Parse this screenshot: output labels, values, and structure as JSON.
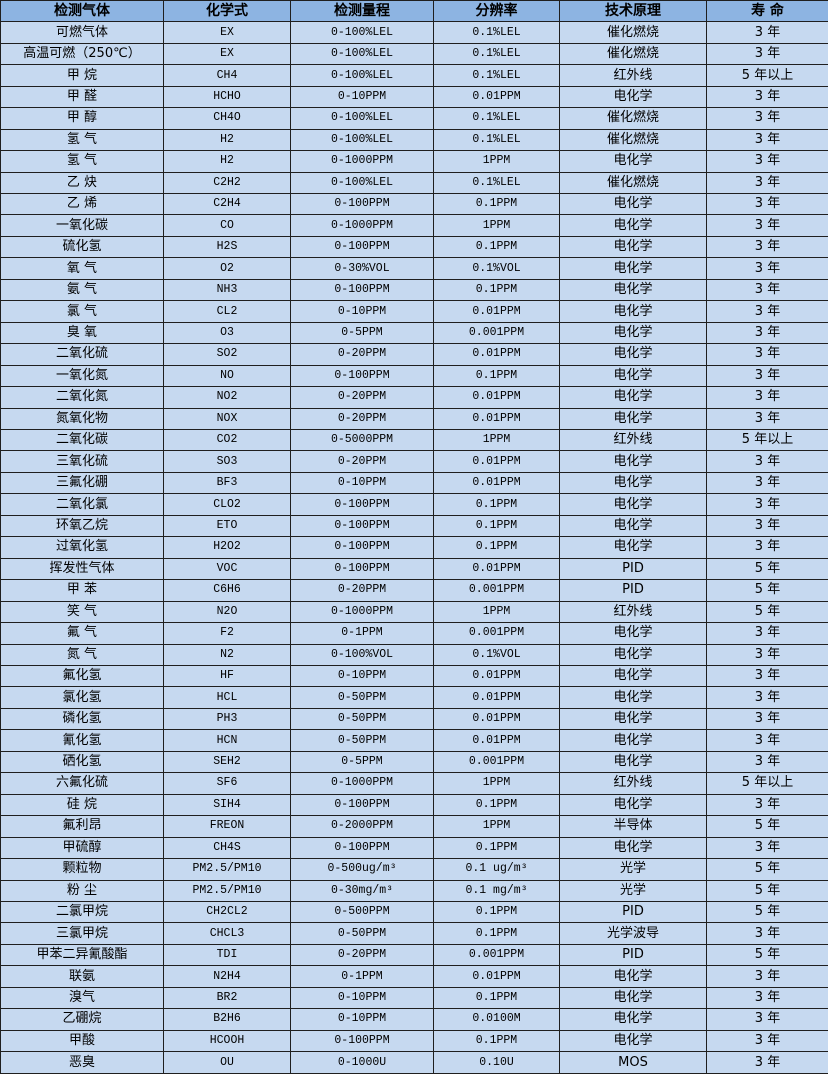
{
  "headers": [
    "检测气体",
    "化学式",
    "检测量程",
    "分辨率",
    "技术原理",
    "寿 命"
  ],
  "rows": [
    [
      "可燃气体",
      "EX",
      "0-100%LEL",
      "0.1%LEL",
      "催化燃烧",
      "3 年"
    ],
    [
      "高温可燃（250℃）",
      "EX",
      "0-100%LEL",
      "0.1%LEL",
      "催化燃烧",
      "3 年"
    ],
    [
      "甲 烷",
      "CH4",
      "0-100%LEL",
      "0.1%LEL",
      "红外线",
      "5 年以上"
    ],
    [
      "甲 醛",
      "HCHO",
      "0-10PPM",
      "0.01PPM",
      "电化学",
      "3 年"
    ],
    [
      "甲 醇",
      "CH4O",
      "0-100%LEL",
      "0.1%LEL",
      "催化燃烧",
      "3 年"
    ],
    [
      "氢 气",
      "H2",
      "0-100%LEL",
      "0.1%LEL",
      "催化燃烧",
      "3 年"
    ],
    [
      "氢 气",
      "H2",
      "0-1000PPM",
      "1PPM",
      "电化学",
      "3 年"
    ],
    [
      "乙 炔",
      "C2H2",
      "0-100%LEL",
      "0.1%LEL",
      "催化燃烧",
      "3 年"
    ],
    [
      "乙 烯",
      "C2H4",
      "0-100PPM",
      "0.1PPM",
      "电化学",
      "3 年"
    ],
    [
      "一氧化碳",
      "CO",
      "0-1000PPM",
      "1PPM",
      "电化学",
      "3 年"
    ],
    [
      "硫化氢",
      "H2S",
      "0-100PPM",
      "0.1PPM",
      "电化学",
      "3 年"
    ],
    [
      "氧 气",
      "O2",
      "0-30%VOL",
      "0.1%VOL",
      "电化学",
      "3 年"
    ],
    [
      "氨 气",
      "NH3",
      "0-100PPM",
      "0.1PPM",
      "电化学",
      "3 年"
    ],
    [
      "氯 气",
      "CL2",
      "0-10PPM",
      "0.01PPM",
      "电化学",
      "3 年"
    ],
    [
      "臭 氧",
      "O3",
      "0-5PPM",
      "0.001PPM",
      "电化学",
      "3 年"
    ],
    [
      "二氧化硫",
      "SO2",
      "0-20PPM",
      "0.01PPM",
      "电化学",
      "3 年"
    ],
    [
      "一氧化氮",
      "NO",
      "0-100PPM",
      "0.1PPM",
      "电化学",
      "3 年"
    ],
    [
      "二氧化氮",
      "NO2",
      "0-20PPM",
      "0.01PPM",
      "电化学",
      "3 年"
    ],
    [
      "氮氧化物",
      "NOX",
      "0-20PPM",
      "0.01PPM",
      "电化学",
      "3 年"
    ],
    [
      "二氧化碳",
      "CO2",
      "0-5000PPM",
      "1PPM",
      "红外线",
      "5 年以上"
    ],
    [
      "三氧化硫",
      "SO3",
      "0-20PPM",
      "0.01PPM",
      "电化学",
      "3 年"
    ],
    [
      "三氟化硼",
      "BF3",
      "0-10PPM",
      "0.01PPM",
      "电化学",
      "3 年"
    ],
    [
      "二氧化氯",
      "CLO2",
      "0-100PPM",
      "0.1PPM",
      "电化学",
      "3 年"
    ],
    [
      "环氧乙烷",
      "ETO",
      "0-100PPM",
      "0.1PPM",
      "电化学",
      "3 年"
    ],
    [
      "过氧化氢",
      "H2O2",
      "0-100PPM",
      "0.1PPM",
      "电化学",
      "3 年"
    ],
    [
      "挥发性气体",
      "VOC",
      "0-100PPM",
      "0.01PPM",
      "PID",
      "5 年"
    ],
    [
      "甲 苯",
      "C6H6",
      "0-20PPM",
      "0.001PPM",
      "PID",
      "5 年"
    ],
    [
      "笑 气",
      "N2O",
      "0-1000PPM",
      "1PPM",
      "红外线",
      "5 年"
    ],
    [
      "氟 气",
      "F2",
      "0-1PPM",
      "0.001PPM",
      "电化学",
      "3 年"
    ],
    [
      "氮 气",
      "N2",
      "0-100%VOL",
      "0.1%VOL",
      "电化学",
      "3 年"
    ],
    [
      "氟化氢",
      "HF",
      "0-10PPM",
      "0.01PPM",
      "电化学",
      "3 年"
    ],
    [
      "氯化氢",
      "HCL",
      "0-50PPM",
      "0.01PPM",
      "电化学",
      "3 年"
    ],
    [
      "磷化氢",
      "PH3",
      "0-50PPM",
      "0.01PPM",
      "电化学",
      "3 年"
    ],
    [
      "氰化氢",
      "HCN",
      "0-50PPM",
      "0.01PPM",
      "电化学",
      "3 年"
    ],
    [
      "硒化氢",
      "SEH2",
      "0-5PPM",
      "0.001PPM",
      "电化学",
      "3 年"
    ],
    [
      "六氟化硫",
      "SF6",
      "0-1000PPM",
      "1PPM",
      "红外线",
      "5 年以上"
    ],
    [
      "硅 烷",
      "SIH4",
      "0-100PPM",
      "0.1PPM",
      "电化学",
      "3 年"
    ],
    [
      "氟利昂",
      "FREON",
      "0-2000PPM",
      "1PPM",
      "半导体",
      "5 年"
    ],
    [
      "甲硫醇",
      "CH4S",
      "0-100PPM",
      "0.1PPM",
      "电化学",
      "3 年"
    ],
    [
      "颗粒物",
      "PM2.5/PM10",
      "0-500ug/m³",
      "0.1 ug/m³",
      "光学",
      "5 年"
    ],
    [
      "粉 尘",
      "PM2.5/PM10",
      "0-30mg/m³",
      "0.1 mg/m³",
      "光学",
      "5 年"
    ],
    [
      "二氯甲烷",
      "CH2CL2",
      "0-500PPM",
      "0.1PPM",
      "PID",
      "5 年"
    ],
    [
      "三氯甲烷",
      "CHCL3",
      "0-50PPM",
      "0.1PPM",
      "光学波导",
      "3 年"
    ],
    [
      "甲苯二异氰酸酯",
      "TDI",
      "0-20PPM",
      "0.001PPM",
      "PID",
      "5 年"
    ],
    [
      "联氨",
      "N2H4",
      "0-1PPM",
      "0.01PPM",
      "电化学",
      "3 年"
    ],
    [
      "溴气",
      "BR2",
      "0-10PPM",
      "0.1PPM",
      "电化学",
      "3 年"
    ],
    [
      "乙硼烷",
      "B2H6",
      "0-10PPM",
      "0.0100M",
      "电化学",
      "3 年"
    ],
    [
      "甲酸",
      "HCOOH",
      "0-100PPM",
      "0.1PPM",
      "电化学",
      "3 年"
    ],
    [
      "恶臭",
      "OU",
      "0-1000U",
      "0.10U",
      "MOS",
      "3 年"
    ]
  ],
  "colors": {
    "header_bg": "#8db4e2",
    "row_bg": "#c6d9f0",
    "border": "#1f1f1f"
  }
}
